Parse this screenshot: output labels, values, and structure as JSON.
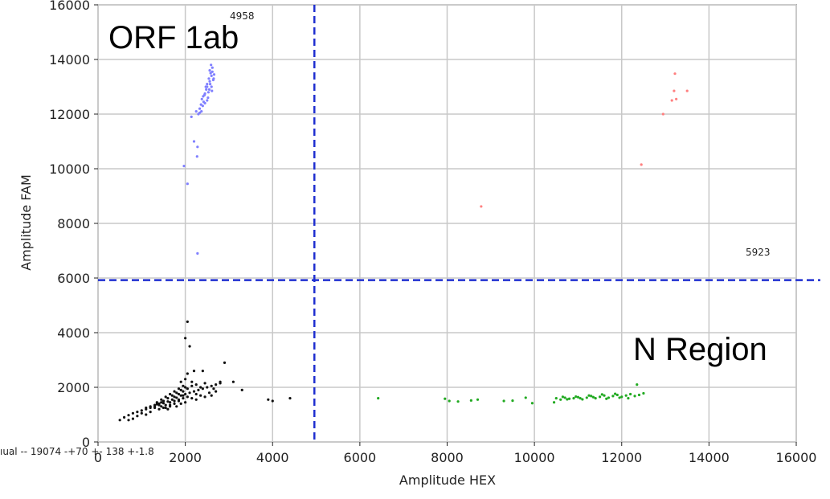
{
  "chart_data": {
    "type": "scatter",
    "title": "",
    "xlabel": "Amplitude HEX",
    "ylabel": "Amplitude FAM",
    "xlim": [
      0,
      16000
    ],
    "ylim": [
      0,
      16000
    ],
    "x_ticks": [
      0,
      2000,
      4000,
      6000,
      8000,
      10000,
      12000,
      14000,
      16000
    ],
    "y_ticks": [
      0,
      2000,
      4000,
      6000,
      8000,
      10000,
      12000,
      14000,
      16000
    ],
    "grid": true,
    "thresholds": {
      "x": {
        "value": 4958,
        "label": "4958",
        "color": "#1f2fd0"
      },
      "y": {
        "value": 5923,
        "label": "5923",
        "color": "#1f2fd0"
      }
    },
    "region_labels": [
      {
        "text": "ORF 1ab",
        "quadrant": "top-left"
      },
      {
        "text": "N Region",
        "quadrant": "bottom-right"
      }
    ],
    "footer_note": "ıual -- 19074 -+70 +- 138 +-1.8",
    "series": [
      {
        "color": "#8080ff",
        "points": [
          [
            1970,
            10100
          ],
          [
            2050,
            9450
          ],
          [
            2280,
            6900
          ],
          [
            2200,
            11000
          ],
          [
            2280,
            10800
          ],
          [
            2270,
            10450
          ],
          [
            2140,
            11900
          ],
          [
            2250,
            12100
          ],
          [
            2300,
            12000
          ],
          [
            2330,
            12200
          ],
          [
            2370,
            12100
          ],
          [
            2420,
            12450
          ],
          [
            2450,
            12750
          ],
          [
            2500,
            13000
          ],
          [
            2520,
            12600
          ],
          [
            2560,
            13200
          ],
          [
            2600,
            13400
          ],
          [
            2620,
            13700
          ],
          [
            2580,
            13500
          ],
          [
            2540,
            13300
          ],
          [
            2480,
            12900
          ],
          [
            2410,
            12650
          ],
          [
            2360,
            12350
          ],
          [
            2650,
            13300
          ],
          [
            2600,
            13000
          ],
          [
            2550,
            12900
          ],
          [
            2500,
            12500
          ],
          [
            2450,
            12400
          ],
          [
            2400,
            12300
          ],
          [
            2560,
            13600
          ],
          [
            2590,
            13800
          ],
          [
            2620,
            13550
          ],
          [
            2640,
            13250
          ],
          [
            2660,
            13450
          ],
          [
            2500,
            13100
          ],
          [
            2440,
            12700
          ],
          [
            2380,
            12550
          ],
          [
            2330,
            12050
          ],
          [
            2470,
            13000
          ],
          [
            2530,
            12800
          ],
          [
            2610,
            12850
          ],
          [
            2570,
            13100
          ]
        ]
      },
      {
        "color": "#ff8080",
        "points": [
          [
            8780,
            8620
          ],
          [
            12450,
            10150
          ],
          [
            12950,
            12000
          ],
          [
            13150,
            12500
          ],
          [
            13250,
            12550
          ],
          [
            13200,
            12850
          ],
          [
            13500,
            12850
          ],
          [
            13220,
            13480
          ]
        ]
      },
      {
        "color": "#22aa22",
        "points": [
          [
            6420,
            1600
          ],
          [
            7950,
            1580
          ],
          [
            8050,
            1500
          ],
          [
            8250,
            1480
          ],
          [
            8550,
            1520
          ],
          [
            8700,
            1550
          ],
          [
            9300,
            1500
          ],
          [
            9500,
            1510
          ],
          [
            9800,
            1620
          ],
          [
            9950,
            1420
          ],
          [
            10450,
            1450
          ],
          [
            10500,
            1600
          ],
          [
            10600,
            1550
          ],
          [
            10700,
            1620
          ],
          [
            10800,
            1580
          ],
          [
            10900,
            1600
          ],
          [
            11000,
            1640
          ],
          [
            11100,
            1560
          ],
          [
            11200,
            1620
          ],
          [
            11300,
            1680
          ],
          [
            11400,
            1600
          ],
          [
            11500,
            1650
          ],
          [
            11600,
            1700
          ],
          [
            11700,
            1620
          ],
          [
            11800,
            1680
          ],
          [
            11900,
            1720
          ],
          [
            12000,
            1650
          ],
          [
            12100,
            1700
          ],
          [
            12200,
            1750
          ],
          [
            12300,
            1680
          ],
          [
            12400,
            1720
          ],
          [
            12500,
            1780
          ],
          [
            12350,
            2100
          ],
          [
            11950,
            1620
          ],
          [
            11650,
            1580
          ],
          [
            11350,
            1640
          ],
          [
            11050,
            1600
          ],
          [
            10750,
            1560
          ],
          [
            12150,
            1600
          ],
          [
            11850,
            1760
          ],
          [
            11550,
            1740
          ],
          [
            11250,
            1700
          ],
          [
            10950,
            1660
          ],
          [
            10650,
            1650
          ]
        ]
      },
      {
        "color": "#111111",
        "points": [
          [
            500,
            800
          ],
          [
            600,
            900
          ],
          [
            700,
            980
          ],
          [
            800,
            1050
          ],
          [
            900,
            1100
          ],
          [
            1000,
            1150
          ],
          [
            1100,
            1200
          ],
          [
            1200,
            1250
          ],
          [
            1300,
            1300
          ],
          [
            1400,
            1350
          ],
          [
            1500,
            1420
          ],
          [
            1600,
            1480
          ],
          [
            1700,
            1550
          ],
          [
            1800,
            1620
          ],
          [
            1900,
            1700
          ],
          [
            2000,
            1750
          ],
          [
            2100,
            1800
          ],
          [
            2200,
            1850
          ],
          [
            2300,
            1900
          ],
          [
            2400,
            1950
          ],
          [
            2500,
            2000
          ],
          [
            2600,
            2050
          ],
          [
            2700,
            2100
          ],
          [
            2800,
            2150
          ],
          [
            1450,
            1300
          ],
          [
            1550,
            1250
          ],
          [
            1650,
            1350
          ],
          [
            1750,
            1400
          ],
          [
            1850,
            1500
          ],
          [
            1950,
            1600
          ],
          [
            1500,
            1500
          ],
          [
            1600,
            1600
          ],
          [
            1700,
            1700
          ],
          [
            1800,
            1800
          ],
          [
            1900,
            1900
          ],
          [
            2000,
            2000
          ],
          [
            1400,
            1200
          ],
          [
            1300,
            1250
          ],
          [
            1650,
            1450
          ],
          [
            1750,
            1650
          ],
          [
            1850,
            1750
          ],
          [
            1950,
            1850
          ],
          [
            2050,
            1950
          ],
          [
            2150,
            2050
          ],
          [
            2250,
            1750
          ],
          [
            2350,
            1700
          ],
          [
            2450,
            1650
          ],
          [
            2550,
            1800
          ],
          [
            1900,
            2200
          ],
          [
            2000,
            2300
          ],
          [
            2050,
            2500
          ],
          [
            2100,
            3500
          ],
          [
            2000,
            3800
          ],
          [
            2050,
            4400
          ],
          [
            2200,
            2600
          ],
          [
            2400,
            2600
          ],
          [
            2900,
            2900
          ],
          [
            3100,
            2200
          ],
          [
            3300,
            1900
          ],
          [
            4000,
            1500
          ],
          [
            4400,
            1600
          ],
          [
            3900,
            1550
          ],
          [
            2800,
            2200
          ],
          [
            2700,
            1850
          ],
          [
            2600,
            1700
          ],
          [
            1200,
            1100
          ],
          [
            1100,
            1000
          ],
          [
            1000,
            1050
          ],
          [
            900,
            950
          ],
          [
            800,
            850
          ],
          [
            700,
            800
          ],
          [
            1350,
            1380
          ],
          [
            1450,
            1450
          ],
          [
            1550,
            1350
          ],
          [
            1650,
            1300
          ],
          [
            1750,
            1500
          ],
          [
            1850,
            1550
          ],
          [
            1950,
            1700
          ],
          [
            2050,
            1650
          ],
          [
            2150,
            1600
          ],
          [
            2250,
            1550
          ],
          [
            1800,
            1300
          ],
          [
            1900,
            1400
          ],
          [
            2000,
            1450
          ],
          [
            1600,
            1200
          ],
          [
            1500,
            1250
          ],
          [
            1400,
            1400
          ],
          [
            1300,
            1350
          ],
          [
            1200,
            1300
          ],
          [
            1100,
            1250
          ],
          [
            2250,
            2100
          ],
          [
            2350,
            2000
          ],
          [
            2150,
            2200
          ],
          [
            1950,
            2050
          ],
          [
            1850,
            1950
          ],
          [
            1750,
            1850
          ],
          [
            1650,
            1750
          ],
          [
            1550,
            1650
          ],
          [
            1450,
            1550
          ],
          [
            1350,
            1450
          ],
          [
            2450,
            2150
          ],
          [
            2650,
            1950
          ]
        ]
      }
    ]
  }
}
